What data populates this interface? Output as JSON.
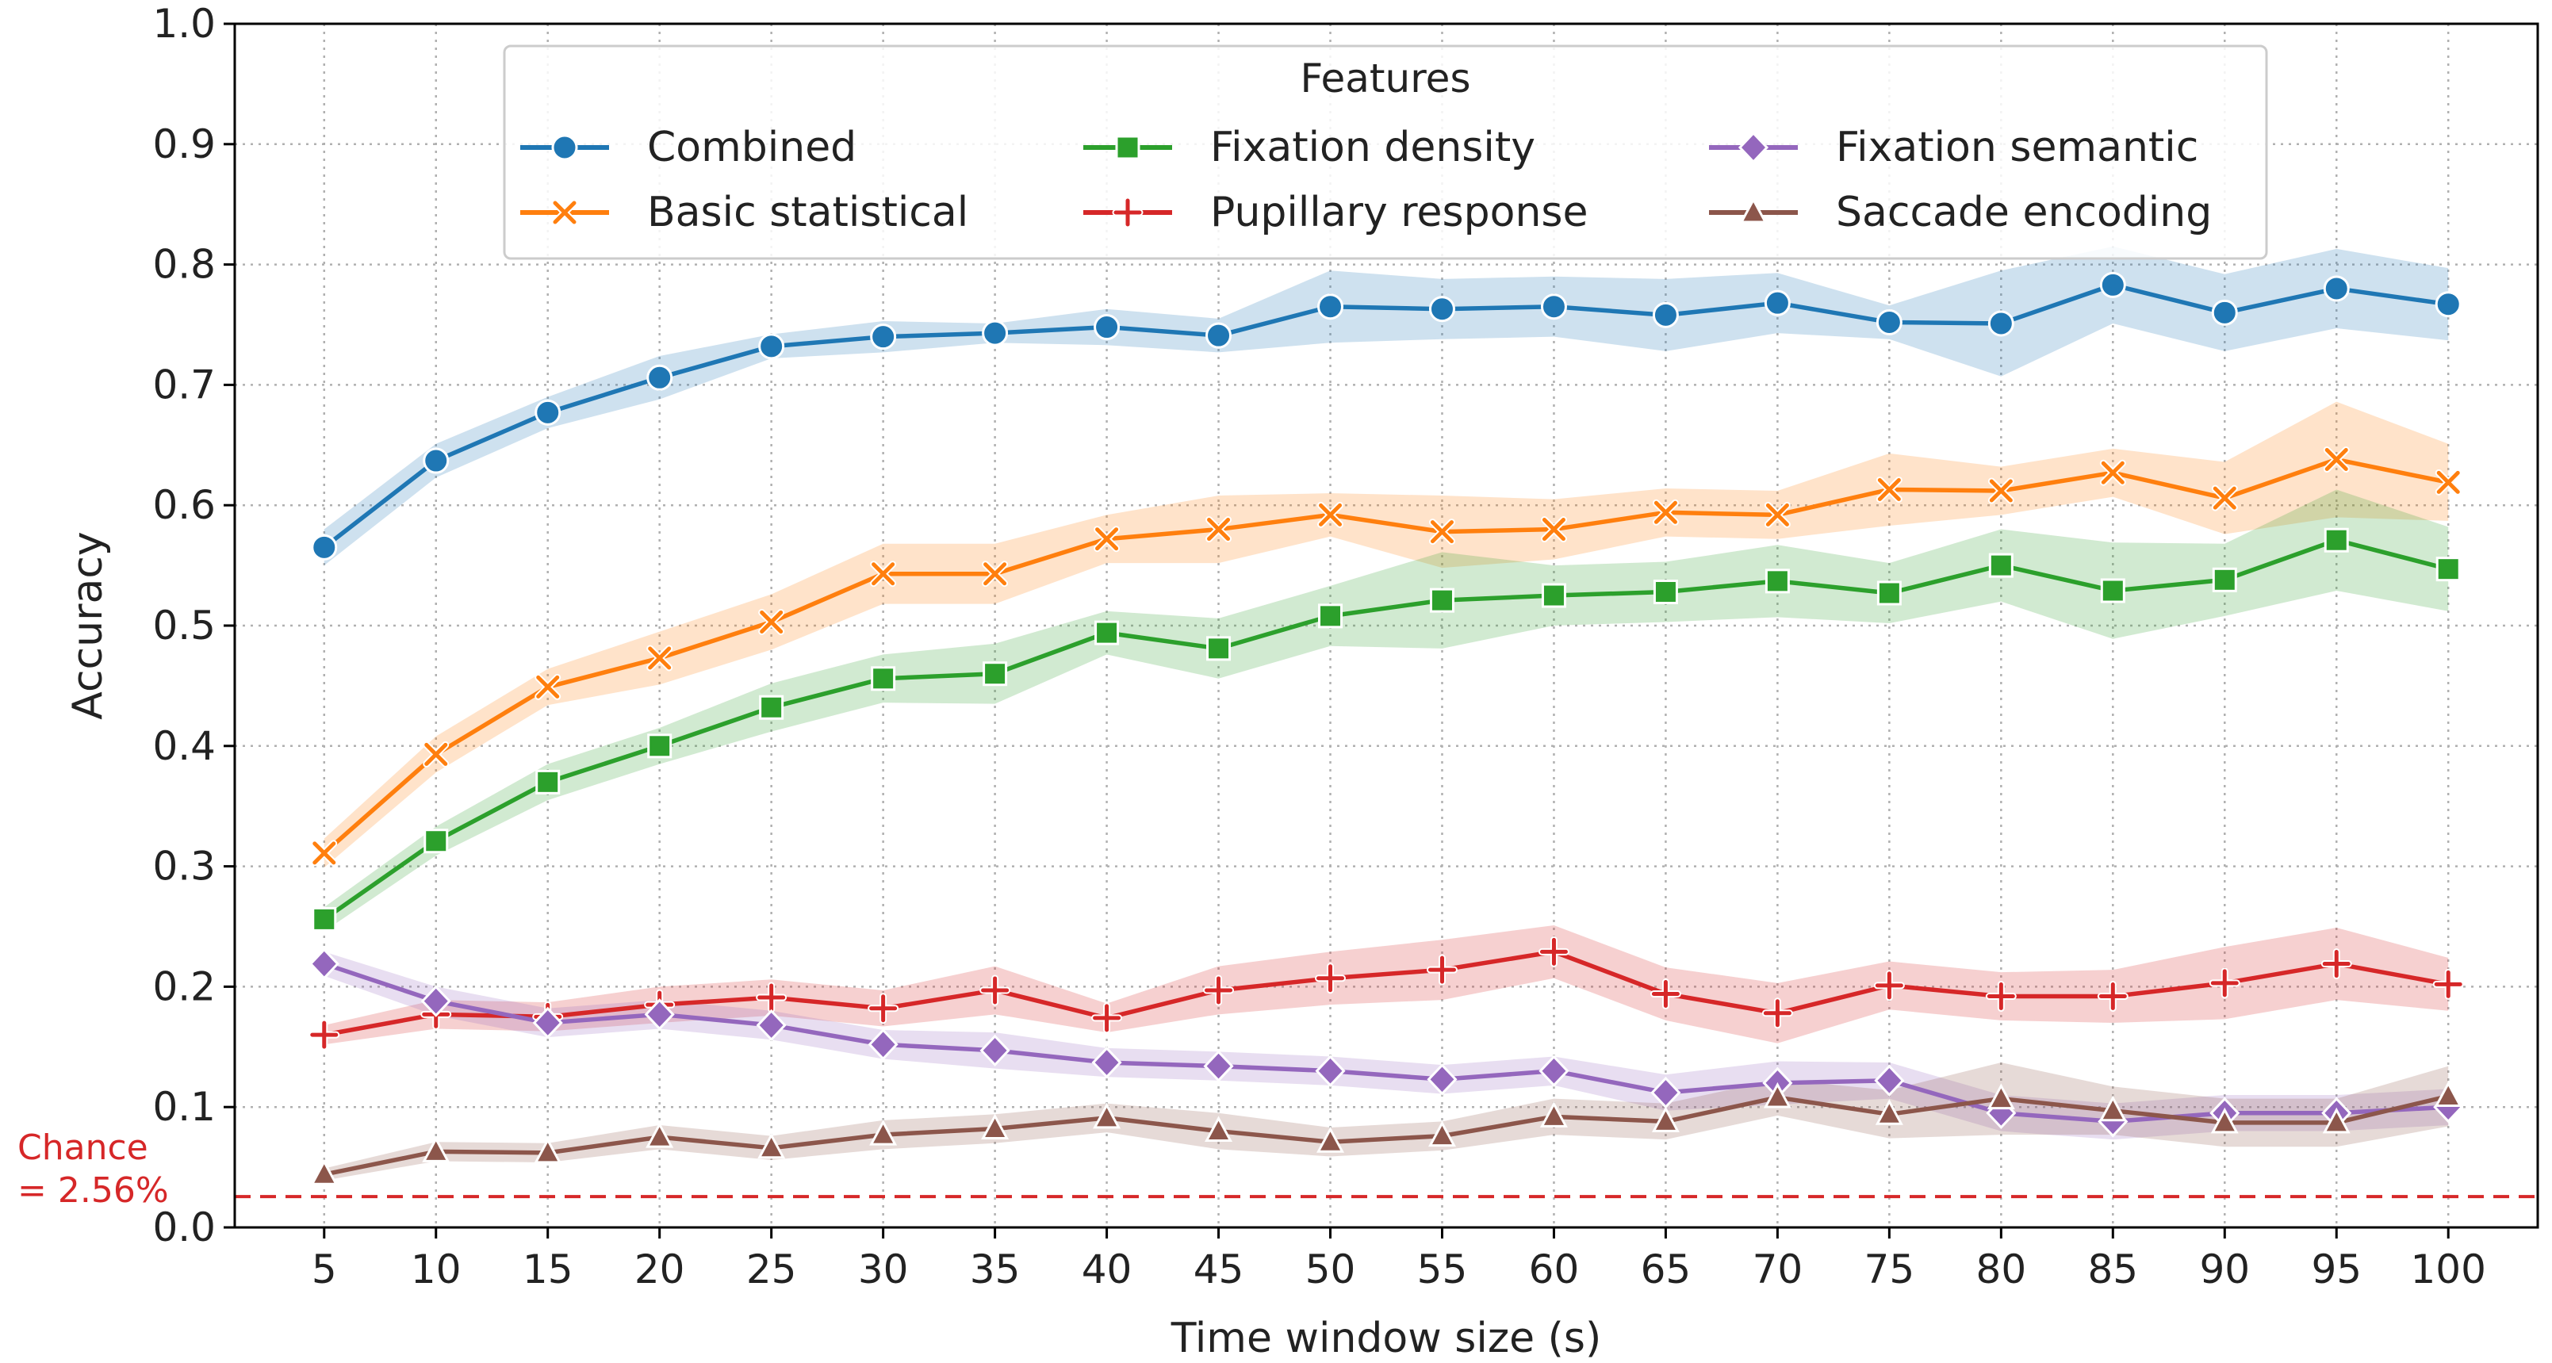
{
  "chart_data": {
    "type": "line",
    "xlabel": "Time window size (s)",
    "ylabel": "Accuracy",
    "x": [
      5,
      10,
      15,
      20,
      25,
      30,
      35,
      40,
      45,
      50,
      55,
      60,
      65,
      70,
      75,
      80,
      85,
      90,
      95,
      100
    ],
    "xticks": [
      "5",
      "10",
      "15",
      "20",
      "25",
      "30",
      "35",
      "40",
      "45",
      "50",
      "55",
      "60",
      "65",
      "70",
      "75",
      "80",
      "85",
      "90",
      "95",
      "100"
    ],
    "ylim": [
      0,
      1.0
    ],
    "yticks": [
      "0.0",
      "0.1",
      "0.2",
      "0.3",
      "0.4",
      "0.5",
      "0.6",
      "0.7",
      "0.8",
      "0.9",
      "1.0"
    ],
    "grid": true,
    "legend": {
      "title": "Features",
      "position": "top-center",
      "columns": 3
    },
    "chance": {
      "value": 0.0256,
      "label_line1": "Chance",
      "label_line2": "= 2.56%",
      "color": "#d62728"
    },
    "series": [
      {
        "name": "Combined",
        "color": "#1f77b4",
        "marker": "circle",
        "values": [
          0.565,
          0.637,
          0.677,
          0.706,
          0.732,
          0.74,
          0.743,
          0.748,
          0.741,
          0.765,
          0.763,
          0.765,
          0.758,
          0.768,
          0.752,
          0.751,
          0.783,
          0.76,
          0.78,
          0.767
        ],
        "ci": [
          0.015,
          0.014,
          0.013,
          0.018,
          0.01,
          0.013,
          0.008,
          0.015,
          0.014,
          0.03,
          0.025,
          0.025,
          0.03,
          0.025,
          0.014,
          0.044,
          0.032,
          0.032,
          0.033,
          0.03
        ]
      },
      {
        "name": "Basic statistical",
        "color": "#ff7f0e",
        "marker": "x",
        "values": [
          0.311,
          0.393,
          0.449,
          0.473,
          0.503,
          0.543,
          0.543,
          0.572,
          0.58,
          0.592,
          0.578,
          0.58,
          0.594,
          0.592,
          0.613,
          0.612,
          0.627,
          0.606,
          0.638,
          0.619
        ],
        "ci": [
          0.012,
          0.015,
          0.015,
          0.022,
          0.023,
          0.025,
          0.025,
          0.02,
          0.028,
          0.018,
          0.03,
          0.025,
          0.02,
          0.02,
          0.03,
          0.02,
          0.02,
          0.03,
          0.048,
          0.032
        ]
      },
      {
        "name": "Fixation density",
        "color": "#2ca02c",
        "marker": "square",
        "values": [
          0.256,
          0.321,
          0.37,
          0.4,
          0.432,
          0.456,
          0.46,
          0.494,
          0.481,
          0.508,
          0.521,
          0.525,
          0.528,
          0.537,
          0.527,
          0.55,
          0.529,
          0.538,
          0.571,
          0.547
        ],
        "ci": [
          0.01,
          0.012,
          0.015,
          0.015,
          0.02,
          0.02,
          0.025,
          0.018,
          0.025,
          0.025,
          0.04,
          0.025,
          0.025,
          0.03,
          0.025,
          0.03,
          0.04,
          0.03,
          0.042,
          0.035
        ]
      },
      {
        "name": "Pupillary response",
        "color": "#d62728",
        "marker": "plus",
        "values": [
          0.16,
          0.177,
          0.175,
          0.185,
          0.191,
          0.182,
          0.197,
          0.174,
          0.197,
          0.207,
          0.214,
          0.229,
          0.194,
          0.178,
          0.201,
          0.192,
          0.192,
          0.203,
          0.219,
          0.202
        ],
        "ci": [
          0.008,
          0.012,
          0.012,
          0.015,
          0.015,
          0.015,
          0.02,
          0.012,
          0.02,
          0.022,
          0.025,
          0.022,
          0.022,
          0.025,
          0.02,
          0.02,
          0.022,
          0.03,
          0.03,
          0.022
        ]
      },
      {
        "name": "Fixation semantic",
        "color": "#9467bd",
        "marker": "diamond",
        "values": [
          0.219,
          0.188,
          0.17,
          0.177,
          0.168,
          0.152,
          0.147,
          0.137,
          0.134,
          0.13,
          0.123,
          0.13,
          0.112,
          0.12,
          0.122,
          0.095,
          0.088,
          0.095,
          0.095,
          0.1
        ],
        "ci": [
          0.01,
          0.012,
          0.012,
          0.012,
          0.012,
          0.012,
          0.015,
          0.012,
          0.012,
          0.012,
          0.012,
          0.012,
          0.015,
          0.018,
          0.015,
          0.015,
          0.015,
          0.015,
          0.015,
          0.015
        ]
      },
      {
        "name": "Saccade encoding",
        "color": "#8c564b",
        "marker": "triangle",
        "values": [
          0.044,
          0.063,
          0.062,
          0.075,
          0.066,
          0.077,
          0.082,
          0.091,
          0.08,
          0.071,
          0.076,
          0.092,
          0.088,
          0.108,
          0.094,
          0.107,
          0.097,
          0.087,
          0.087,
          0.109
        ],
        "ci": [
          0.005,
          0.008,
          0.008,
          0.01,
          0.01,
          0.012,
          0.012,
          0.012,
          0.015,
          0.012,
          0.012,
          0.015,
          0.015,
          0.015,
          0.02,
          0.03,
          0.02,
          0.02,
          0.02,
          0.025
        ]
      }
    ]
  }
}
